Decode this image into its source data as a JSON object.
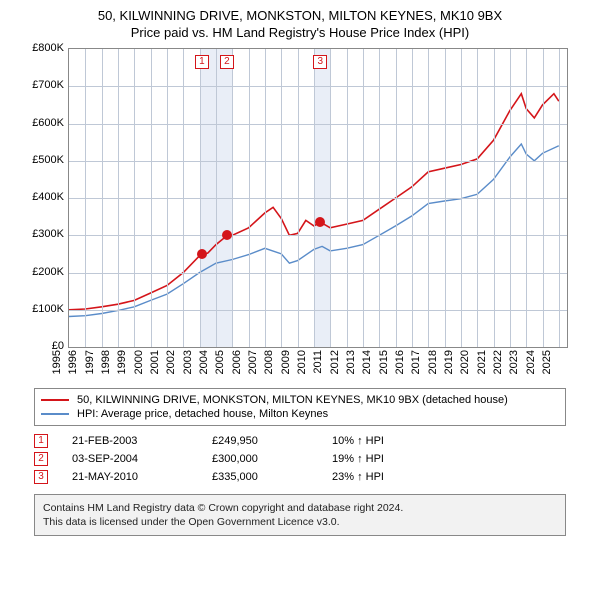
{
  "title": {
    "line1": "50, KILWINNING DRIVE, MONKSTON, MILTON KEYNES, MK10 9BX",
    "line2": "Price paid vs. HM Land Registry's House Price Index (HPI)"
  },
  "chart": {
    "type": "line",
    "background_color": "#ffffff",
    "grid_color": "#bfc8d6",
    "border_color": "#888888",
    "shade_color": "#e9eef7",
    "x": {
      "min": 1995,
      "max": 2025.5,
      "ticks": [
        1995,
        1996,
        1997,
        1998,
        1999,
        2000,
        2001,
        2002,
        2003,
        2004,
        2005,
        2006,
        2007,
        2008,
        2009,
        2010,
        2011,
        2012,
        2013,
        2014,
        2015,
        2016,
        2017,
        2018,
        2019,
        2020,
        2021,
        2022,
        2023,
        2024,
        2025
      ]
    },
    "y": {
      "min": 0,
      "max": 800000,
      "ticks": [
        0,
        100000,
        200000,
        300000,
        400000,
        500000,
        600000,
        700000,
        800000
      ],
      "tick_labels": [
        "£0",
        "£100K",
        "£200K",
        "£300K",
        "£400K",
        "£500K",
        "£600K",
        "£700K",
        "£800K"
      ]
    },
    "shaded_years": [
      2003,
      2004,
      2010
    ],
    "series": [
      {
        "id": "price_paid",
        "label": "50, KILWINNING DRIVE, MONKSTON, MILTON KEYNES, MK10 9BX (detached house)",
        "color": "#d4151a",
        "width": 1.6,
        "points": [
          [
            1995,
            100000
          ],
          [
            1996,
            102000
          ],
          [
            1997,
            108000
          ],
          [
            1998,
            115000
          ],
          [
            1999,
            125000
          ],
          [
            2000,
            145000
          ],
          [
            2001,
            165000
          ],
          [
            2002,
            200000
          ],
          [
            2003,
            245000
          ],
          [
            2003.5,
            252000
          ],
          [
            2004,
            275000
          ],
          [
            2004.7,
            300000
          ],
          [
            2005,
            300000
          ],
          [
            2006,
            320000
          ],
          [
            2007,
            360000
          ],
          [
            2007.5,
            375000
          ],
          [
            2008,
            345000
          ],
          [
            2008.5,
            300000
          ],
          [
            2009,
            305000
          ],
          [
            2009.5,
            340000
          ],
          [
            2010,
            325000
          ],
          [
            2010.4,
            335000
          ],
          [
            2011,
            320000
          ],
          [
            2012,
            330000
          ],
          [
            2013,
            340000
          ],
          [
            2014,
            370000
          ],
          [
            2015,
            400000
          ],
          [
            2016,
            430000
          ],
          [
            2017,
            470000
          ],
          [
            2018,
            480000
          ],
          [
            2019,
            490000
          ],
          [
            2020,
            505000
          ],
          [
            2021,
            555000
          ],
          [
            2022,
            635000
          ],
          [
            2022.7,
            680000
          ],
          [
            2023,
            640000
          ],
          [
            2023.5,
            615000
          ],
          [
            2024,
            650000
          ],
          [
            2024.7,
            680000
          ],
          [
            2025,
            660000
          ]
        ]
      },
      {
        "id": "hpi",
        "label": "HPI: Average price, detached house, Milton Keynes",
        "color": "#5a8cc9",
        "width": 1.4,
        "points": [
          [
            1995,
            82000
          ],
          [
            1996,
            84000
          ],
          [
            1997,
            90000
          ],
          [
            1998,
            98000
          ],
          [
            1999,
            108000
          ],
          [
            2000,
            125000
          ],
          [
            2001,
            142000
          ],
          [
            2002,
            170000
          ],
          [
            2003,
            200000
          ],
          [
            2004,
            225000
          ],
          [
            2005,
            235000
          ],
          [
            2006,
            248000
          ],
          [
            2007,
            265000
          ],
          [
            2008,
            250000
          ],
          [
            2008.5,
            225000
          ],
          [
            2009,
            232000
          ],
          [
            2010,
            262000
          ],
          [
            2010.5,
            270000
          ],
          [
            2011,
            258000
          ],
          [
            2012,
            265000
          ],
          [
            2013,
            275000
          ],
          [
            2014,
            300000
          ],
          [
            2015,
            325000
          ],
          [
            2016,
            352000
          ],
          [
            2017,
            385000
          ],
          [
            2018,
            392000
          ],
          [
            2019,
            398000
          ],
          [
            2020,
            410000
          ],
          [
            2021,
            450000
          ],
          [
            2022,
            510000
          ],
          [
            2022.7,
            545000
          ],
          [
            2023,
            518000
          ],
          [
            2023.5,
            500000
          ],
          [
            2024,
            520000
          ],
          [
            2025,
            540000
          ]
        ]
      }
    ],
    "sale_markers": [
      {
        "n": "1",
        "x": 2003.14,
        "y": 249950
      },
      {
        "n": "2",
        "x": 2004.67,
        "y": 300000
      },
      {
        "n": "3",
        "x": 2010.39,
        "y": 335000
      }
    ],
    "marker_color": "#d4151a"
  },
  "legend": {
    "items": [
      {
        "color": "#d4151a",
        "label": "50, KILWINNING DRIVE, MONKSTON, MILTON KEYNES, MK10 9BX (detached house)"
      },
      {
        "color": "#5a8cc9",
        "label": "HPI: Average price, detached house, Milton Keynes"
      }
    ]
  },
  "datapoints": [
    {
      "n": "1",
      "color": "#d4151a",
      "date": "21-FEB-2003",
      "price": "£249,950",
      "pct": "10% ↑ HPI"
    },
    {
      "n": "2",
      "color": "#d4151a",
      "date": "03-SEP-2004",
      "price": "£300,000",
      "pct": "19% ↑ HPI"
    },
    {
      "n": "3",
      "color": "#d4151a",
      "date": "21-MAY-2010",
      "price": "£335,000",
      "pct": "23% ↑ HPI"
    }
  ],
  "footer": {
    "line1": "Contains HM Land Registry data © Crown copyright and database right 2024.",
    "line2": "This data is licensed under the Open Government Licence v3.0."
  }
}
